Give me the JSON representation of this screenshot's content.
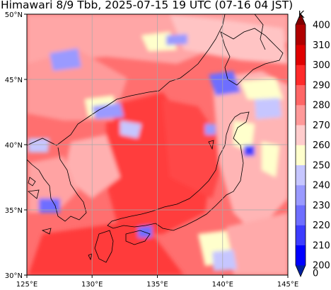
{
  "title": "Himawari 8/9 Tbb, 2025-07-15 19 UTC (07-16 04 JST)",
  "map": {
    "lon_range": [
      125,
      145
    ],
    "lat_range": [
      30,
      50
    ],
    "lon_ticks": [
      "125°E",
      "130°E",
      "135°E",
      "140°E",
      "145°E"
    ],
    "lat_ticks": [
      "30°N",
      "35°N",
      "40°N",
      "45°N",
      "50°N"
    ],
    "grid": true
  },
  "colorbar": {
    "unit": "K",
    "levels": [
      200,
      210,
      220,
      230,
      240,
      250,
      260,
      270,
      280,
      290,
      300,
      310,
      400
    ],
    "labels": [
      "0",
      "200",
      "210",
      "220",
      "230",
      "240",
      "250",
      "260",
      "270",
      "280",
      "290",
      "300",
      "310",
      "400"
    ],
    "colors": [
      "#001f9f",
      "#0000ff",
      "#3c3cff",
      "#6e6eff",
      "#9a9aff",
      "#c6c6ff",
      "#ffffcc",
      "#ffcccc",
      "#ff9999",
      "#ff6666",
      "#ff2a2a",
      "#e00000",
      "#b00000",
      "#800000"
    ]
  }
}
